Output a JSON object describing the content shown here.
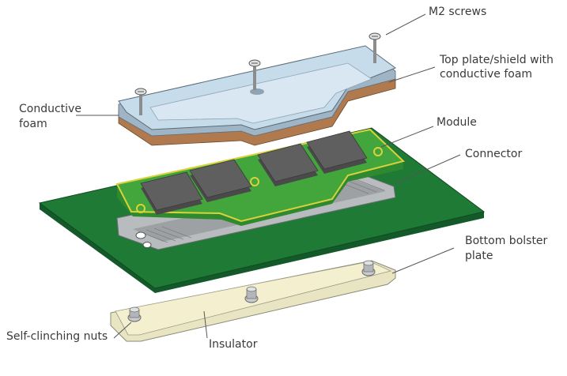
{
  "labels": {
    "m2_screws": "M2 screws",
    "top_plate_line1": "Top plate/shield with",
    "top_plate_line2": "conductive foam",
    "conductive_foam_line1": "Conductive",
    "conductive_foam_line2": "foam",
    "module": "Module",
    "connector": "Connector",
    "bottom_bolster_line1": "Bottom bolster",
    "bottom_bolster_line2": "plate",
    "self_clinching_nuts": "Self-clinching nuts",
    "insulator": "Insulator"
  },
  "colors": {
    "pcb": "#1f7a35",
    "module_pcb": "#43a63c",
    "gold_trace": "#d9d23a",
    "chip": "#5a5a5a",
    "top_plate": "#c7dcea",
    "foam": "#b07a4e",
    "insulator": "#f4f0cf",
    "metal": "#b9bcbf",
    "leader": "#555555"
  }
}
